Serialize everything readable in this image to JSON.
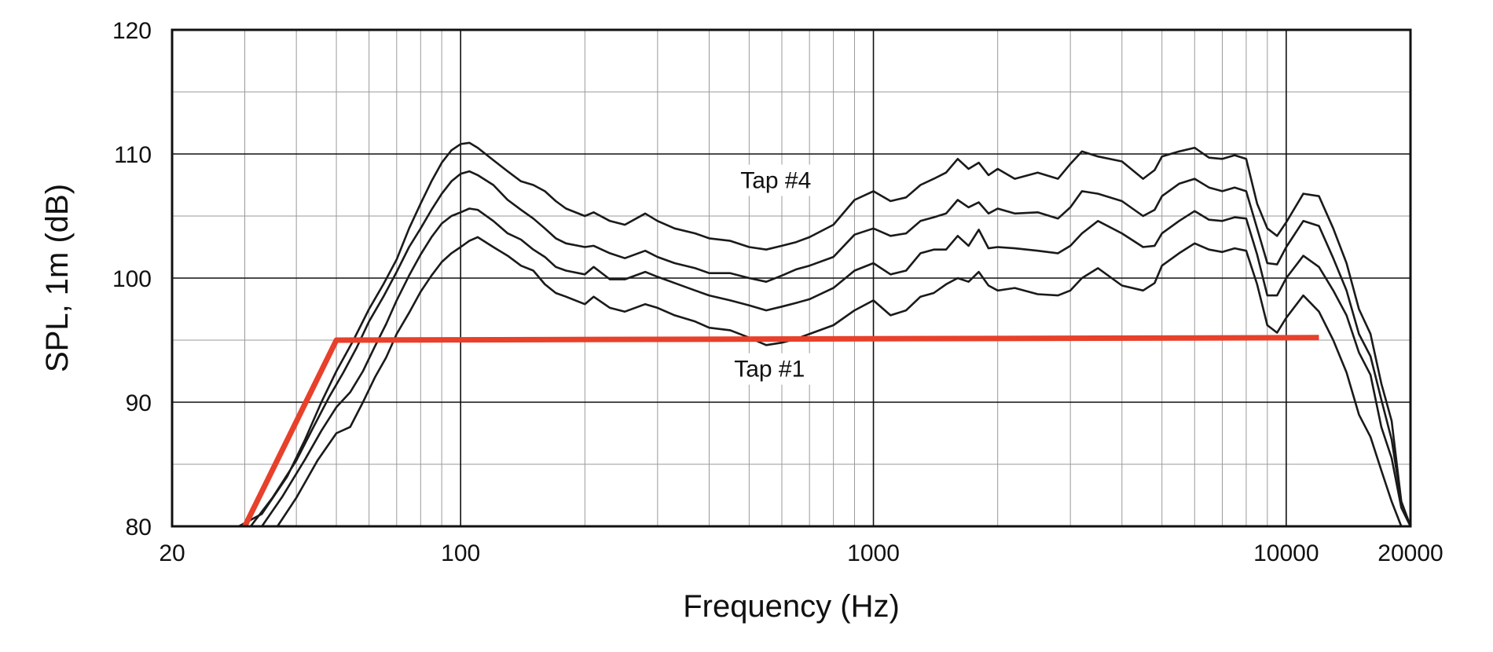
{
  "chart_data": {
    "type": "line",
    "xlabel": "Frequency (Hz)",
    "ylabel": "SPL, 1m (dB)",
    "xscale": "log",
    "xlim": [
      20,
      20000
    ],
    "ylim": [
      80,
      120
    ],
    "grid": true,
    "x_tick_labels": [
      {
        "value": 20,
        "label": "20"
      },
      {
        "value": 100,
        "label": "100"
      },
      {
        "value": 1000,
        "label": "1000"
      },
      {
        "value": 10000,
        "label": "10000"
      },
      {
        "value": 20000,
        "label": "20000"
      }
    ],
    "y_tick_labels": [
      {
        "value": 80,
        "label": "80"
      },
      {
        "value": 90,
        "label": "90"
      },
      {
        "value": 100,
        "label": "100"
      },
      {
        "value": 110,
        "label": "110"
      },
      {
        "value": 120,
        "label": "120"
      }
    ],
    "annotations": [
      {
        "text": "Tap #4",
        "x": 580,
        "y": 107.5
      },
      {
        "text": "Tap #1",
        "x": 560,
        "y": 92.3
      }
    ],
    "series": [
      {
        "color": "#1a1a1a",
        "x": [
          29,
          33,
          38,
          42,
          46,
          50,
          55,
          60,
          65,
          70,
          75,
          80,
          85,
          90,
          95,
          100,
          105,
          110,
          120,
          130,
          140,
          150,
          160,
          170,
          180,
          200,
          210,
          230,
          250,
          280,
          300,
          330,
          370,
          400,
          450,
          500,
          550,
          600,
          650,
          700,
          800,
          900,
          1000,
          1100,
          1200,
          1300,
          1400,
          1500,
          1600,
          1700,
          1800,
          1900,
          2000,
          2200,
          2500,
          2800,
          3000,
          3200,
          3500,
          4000,
          4500,
          4800,
          5000,
          5500,
          6000,
          6500,
          7000,
          7500,
          8000,
          8500,
          9000,
          9500,
          10000,
          11000,
          12000,
          13000,
          14000,
          15000,
          16000,
          17000,
          18000,
          19000,
          20000
        ],
        "y": [
          80,
          81,
          84,
          87,
          90,
          92.5,
          95,
          97.5,
          99.5,
          101.5,
          104,
          106,
          107.8,
          109.3,
          110.3,
          110.8,
          110.9,
          110.5,
          109.5,
          108.6,
          107.8,
          107.5,
          107,
          106.2,
          105.6,
          105,
          105.3,
          104.6,
          104.3,
          105.2,
          104.6,
          104,
          103.6,
          103.2,
          103,
          102.5,
          102.3,
          102.6,
          102.9,
          103.3,
          104.3,
          106.3,
          107,
          106.2,
          106.5,
          107.5,
          108,
          108.5,
          109.6,
          108.8,
          109.3,
          108.3,
          108.8,
          108,
          108.5,
          108,
          109.2,
          110.2,
          109.8,
          109.4,
          108,
          108.7,
          109.8,
          110.2,
          110.5,
          109.7,
          109.6,
          109.9,
          109.6,
          106,
          104,
          103.4,
          104.5,
          106.8,
          106.6,
          104,
          101.2,
          97.5,
          95.5,
          91.5,
          88.5,
          82,
          80
        ]
      },
      {
        "color": "#1a1a1a",
        "x": [
          31,
          35,
          40,
          44,
          48,
          52,
          56,
          60,
          65,
          70,
          75,
          80,
          85,
          90,
          95,
          100,
          105,
          110,
          120,
          130,
          140,
          150,
          160,
          170,
          180,
          200,
          210,
          230,
          250,
          280,
          300,
          330,
          370,
          400,
          450,
          500,
          550,
          600,
          650,
          700,
          800,
          900,
          1000,
          1100,
          1200,
          1300,
          1400,
          1500,
          1600,
          1700,
          1800,
          1900,
          2000,
          2200,
          2500,
          2800,
          3000,
          3200,
          3500,
          4000,
          4500,
          4800,
          5000,
          5500,
          6000,
          6500,
          7000,
          7500,
          8000,
          8500,
          9000,
          9500,
          10000,
          11000,
          12000,
          13000,
          14000,
          15000,
          16000,
          17000,
          18000,
          19000,
          20000
        ],
        "y": [
          80,
          82.3,
          85.3,
          88,
          90.4,
          92.4,
          94.4,
          96.5,
          98.5,
          100.5,
          102.5,
          104,
          105.5,
          106.8,
          107.8,
          108.4,
          108.6,
          108.3,
          107.5,
          106.3,
          105.5,
          104.8,
          104,
          103.2,
          102.8,
          102.5,
          102.6,
          102,
          101.6,
          102.2,
          101.7,
          101.2,
          100.8,
          100.4,
          100.4,
          100,
          99.7,
          100.2,
          100.7,
          101,
          101.7,
          103.5,
          104,
          103.4,
          103.6,
          104.6,
          104.9,
          105.2,
          106.3,
          105.7,
          106.1,
          105.2,
          105.6,
          105.2,
          105.3,
          104.8,
          105.7,
          107,
          106.8,
          106.2,
          105,
          105.5,
          106.6,
          107.6,
          108,
          107.3,
          107,
          107.3,
          107,
          104,
          101.2,
          101.1,
          102.5,
          104.6,
          104.2,
          101.6,
          99,
          95.5,
          93.7,
          90.2,
          87,
          82,
          80
        ]
      },
      {
        "color": "#1a1a1a",
        "x": [
          33,
          37,
          42,
          46,
          50,
          54,
          58,
          62,
          66,
          70,
          75,
          80,
          85,
          90,
          95,
          100,
          105,
          110,
          120,
          130,
          140,
          150,
          160,
          170,
          180,
          200,
          210,
          230,
          250,
          280,
          300,
          330,
          370,
          400,
          450,
          500,
          550,
          600,
          650,
          700,
          800,
          900,
          1000,
          1100,
          1200,
          1300,
          1400,
          1500,
          1600,
          1700,
          1800,
          1900,
          2000,
          2200,
          2500,
          2800,
          3000,
          3200,
          3500,
          4000,
          4500,
          4800,
          5000,
          5500,
          6000,
          6500,
          7000,
          7500,
          8000,
          8500,
          9000,
          9500,
          10000,
          11000,
          12000,
          13000,
          14000,
          15000,
          16000,
          17000,
          18000,
          19000,
          20000
        ],
        "y": [
          80,
          82.4,
          85.4,
          87.7,
          89.6,
          90.8,
          92.5,
          94.5,
          96.3,
          98.2,
          100.2,
          101.9,
          103.3,
          104.4,
          105,
          105.3,
          105.6,
          105.5,
          104.6,
          103.6,
          103.1,
          102.3,
          101.7,
          100.9,
          100.6,
          100.3,
          100.9,
          99.9,
          99.9,
          100.5,
          100.1,
          99.6,
          99,
          98.6,
          98.2,
          97.8,
          97.4,
          97.7,
          98,
          98.3,
          99.2,
          100.6,
          101.2,
          100.3,
          100.6,
          102,
          102.3,
          102.3,
          103.4,
          102.6,
          103.9,
          102.4,
          102.5,
          102.4,
          102.2,
          102,
          102.6,
          103.6,
          104.6,
          103.6,
          102.5,
          102.6,
          103.6,
          104.6,
          105.4,
          104.7,
          104.6,
          104.9,
          104.8,
          101.9,
          98.6,
          98.6,
          100,
          101.8,
          100.9,
          99,
          97,
          94,
          92.2,
          88,
          85.5,
          81.5,
          80
        ]
      },
      {
        "color": "#1a1a1a",
        "x": [
          36,
          40,
          45,
          50,
          54,
          58,
          62,
          66,
          70,
          75,
          80,
          85,
          90,
          95,
          100,
          105,
          110,
          120,
          130,
          140,
          150,
          160,
          170,
          180,
          200,
          210,
          230,
          250,
          280,
          300,
          330,
          370,
          400,
          450,
          500,
          550,
          600,
          650,
          700,
          800,
          900,
          1000,
          1100,
          1200,
          1300,
          1400,
          1500,
          1600,
          1700,
          1800,
          1900,
          2000,
          2200,
          2500,
          2800,
          3000,
          3200,
          3500,
          4000,
          4500,
          4800,
          5000,
          5500,
          6000,
          6500,
          7000,
          7500,
          8000,
          8500,
          9000,
          9500,
          10000,
          11000,
          12000,
          13000,
          14000,
          15000,
          16000,
          17000,
          18000,
          19000,
          20000
        ],
        "y": [
          80,
          82.3,
          85.3,
          87.5,
          88,
          90,
          92,
          93.6,
          95.5,
          97.2,
          98.9,
          100.2,
          101.3,
          102,
          102.5,
          103,
          103.3,
          102.5,
          101.8,
          101,
          100.6,
          99.5,
          98.8,
          98.5,
          97.9,
          98.5,
          97.6,
          97.3,
          97.9,
          97.6,
          97,
          96.5,
          96,
          95.8,
          95.2,
          94.6,
          94.8,
          95.1,
          95.5,
          96.2,
          97.4,
          98.2,
          97,
          97.4,
          98.5,
          98.8,
          99.5,
          100,
          99.7,
          100.5,
          99.4,
          99,
          99.2,
          98.7,
          98.6,
          99,
          100,
          100.8,
          99.4,
          99,
          99.6,
          101,
          102,
          102.8,
          102.3,
          102.1,
          102.4,
          102.2,
          99.5,
          96.2,
          95.6,
          96.8,
          98.6,
          97.3,
          95,
          92.4,
          89,
          87.2,
          84.5,
          82,
          80,
          80
        ]
      },
      {
        "color": "#e8402a",
        "x": [
          30,
          50,
          12000
        ],
        "y": [
          80,
          95,
          95.2
        ]
      }
    ]
  }
}
